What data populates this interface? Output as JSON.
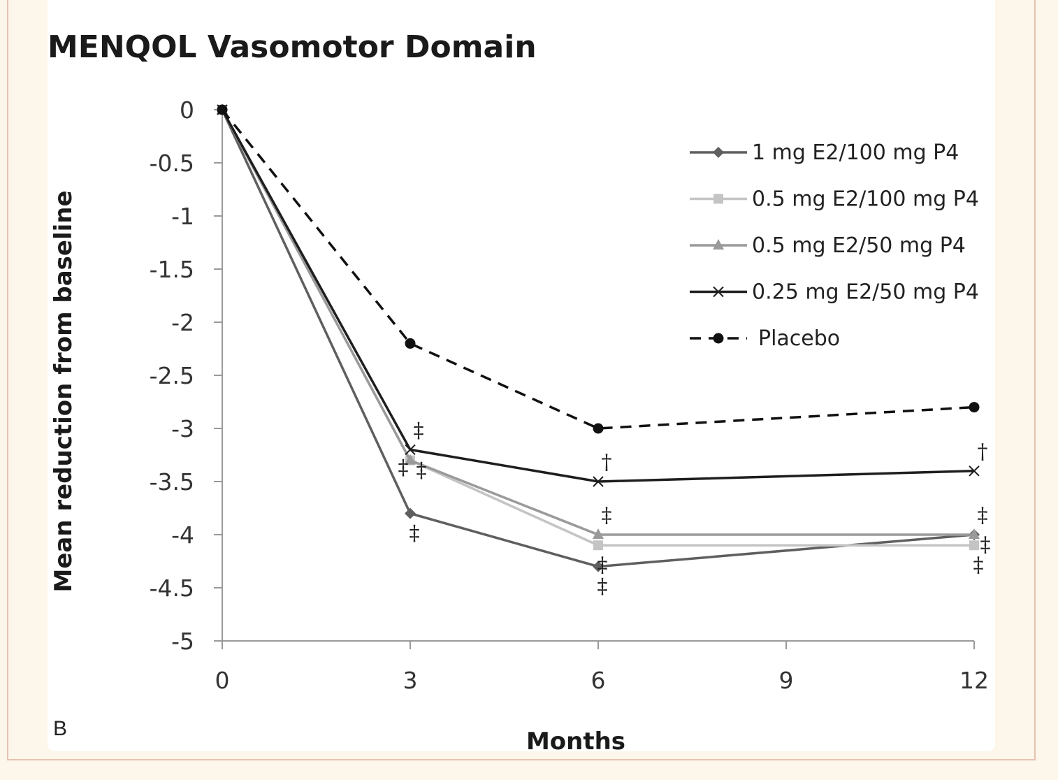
{
  "chart_data": {
    "type": "line",
    "title": "MENQOL Vasomotor Domain",
    "xlabel": "Months",
    "ylabel": "Mean reduction from baseline",
    "panel_label": "B",
    "x": [
      0,
      3,
      6,
      12
    ],
    "xticks": [
      0,
      3,
      6,
      9,
      12
    ],
    "yticks": [
      0,
      -0.5,
      -1,
      -1.5,
      -2,
      -2.5,
      -3,
      -3.5,
      -4,
      -4.5,
      -5
    ],
    "xlim": [
      0,
      12
    ],
    "ylim": [
      -5,
      0
    ],
    "grid": false,
    "legend_position": "top-right",
    "series": [
      {
        "name": "1 mg E2/100 mg P4",
        "values": [
          0,
          -3.8,
          -4.3,
          -4.0
        ],
        "color": "#5f5f5f",
        "marker": "diamond",
        "dash": "solid"
      },
      {
        "name": "0.5 mg E2/100 mg P4",
        "values": [
          0,
          -3.3,
          -4.1,
          -4.1
        ],
        "color": "#c4c4c4",
        "marker": "square",
        "dash": "solid"
      },
      {
        "name": "0.5 mg E2/50 mg P4",
        "values": [
          0,
          -3.3,
          -4.0,
          -4.0
        ],
        "color": "#9a9a9a",
        "marker": "triangle",
        "dash": "solid"
      },
      {
        "name": "0.25 mg E2/50 mg P4",
        "values": [
          0,
          -3.2,
          -3.5,
          -3.4
        ],
        "color": "#1e1e1e",
        "marker": "x",
        "dash": "solid"
      },
      {
        "name": "Placebo",
        "values": [
          0,
          -2.2,
          -3.0,
          -2.8
        ],
        "color": "#111111",
        "marker": "circle",
        "dash": "dashed"
      }
    ],
    "annotations": [
      {
        "text": "‡",
        "x": 3,
        "y": -3.8,
        "pos": "below"
      },
      {
        "text": "‡",
        "x": 3,
        "y": -3.3,
        "pos": "left"
      },
      {
        "text": "‡",
        "x": 3,
        "y": -3.3,
        "pos": "right"
      },
      {
        "text": "‡",
        "x": 3,
        "y": -3.2,
        "pos": "above"
      },
      {
        "text": "†",
        "x": 6,
        "y": -3.5,
        "pos": "above"
      },
      {
        "text": "‡",
        "x": 6,
        "y": -4.0,
        "pos": "above"
      },
      {
        "text": "‡",
        "x": 6,
        "y": -4.1,
        "pos": "below"
      },
      {
        "text": "‡",
        "x": 6,
        "y": -4.3,
        "pos": "below"
      },
      {
        "text": "†",
        "x": 12,
        "y": -3.4,
        "pos": "above"
      },
      {
        "text": "‡",
        "x": 12,
        "y": -4.0,
        "pos": "above"
      },
      {
        "text": "‡",
        "x": 12,
        "y": -4.0,
        "pos": "right"
      },
      {
        "text": "‡",
        "x": 12,
        "y": -4.1,
        "pos": "below"
      }
    ]
  }
}
